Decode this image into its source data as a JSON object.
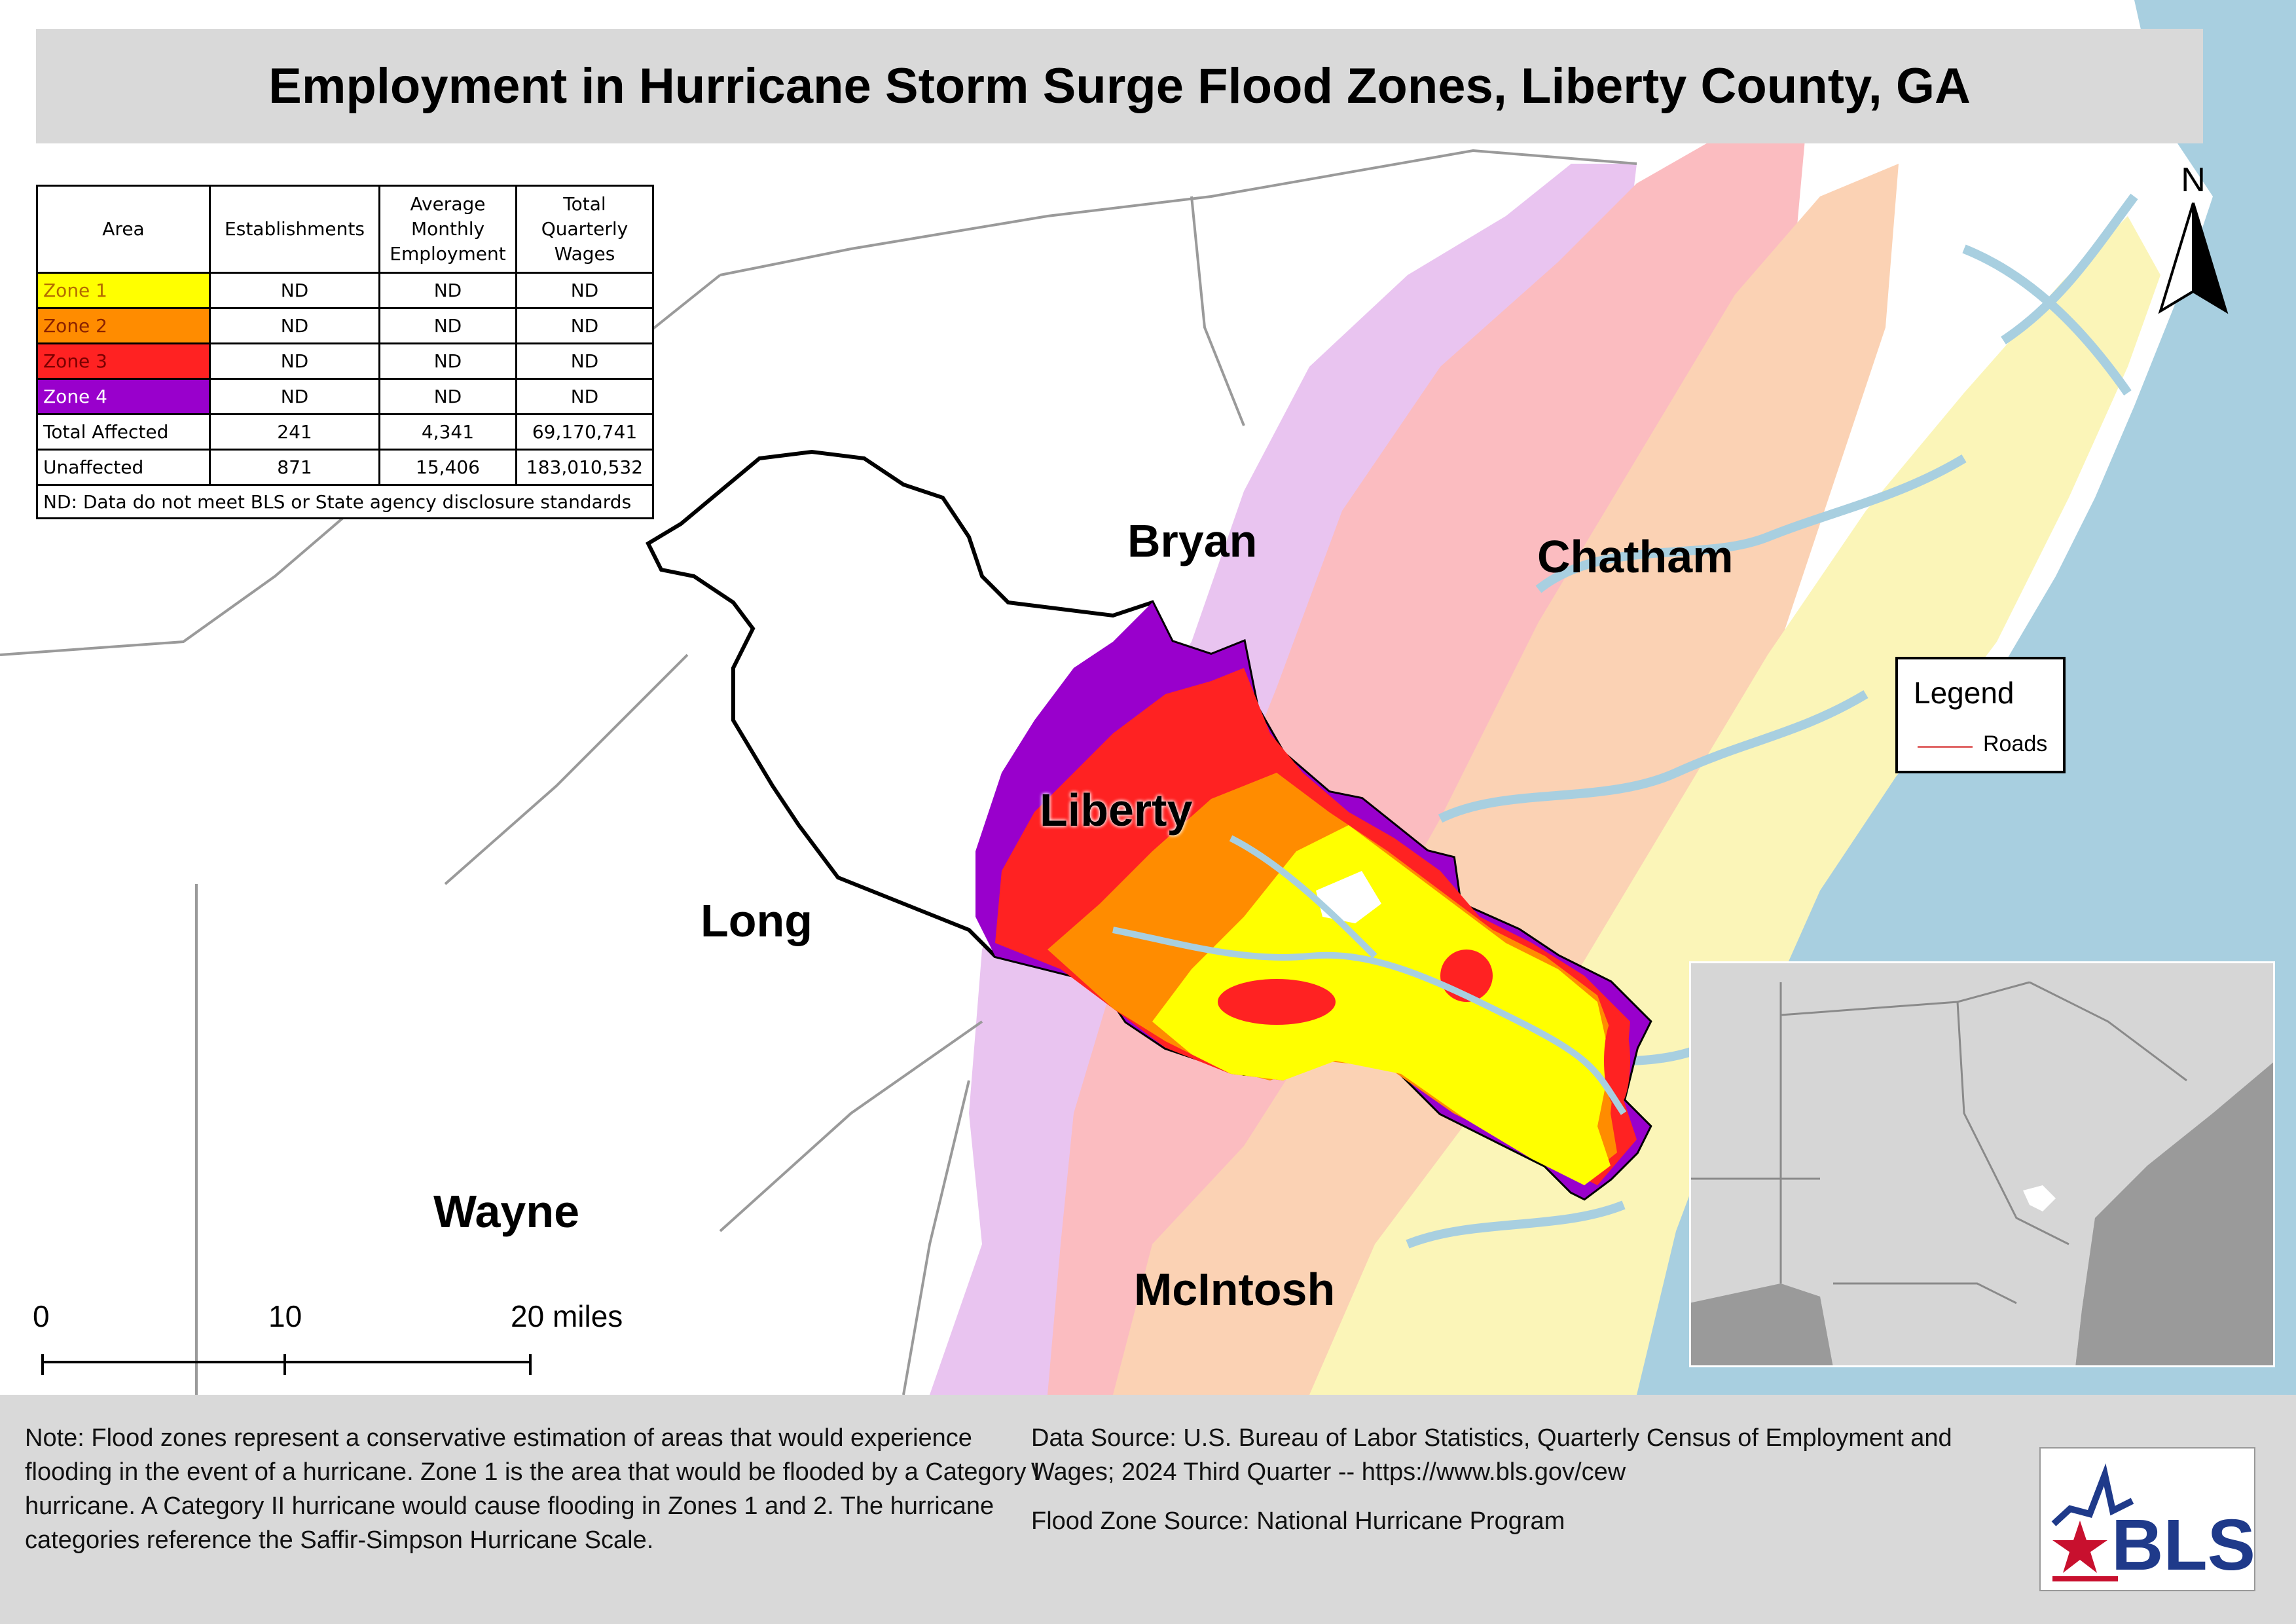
{
  "title": "Employment in Hurricane Storm Surge Flood Zones, Liberty County, GA",
  "table": {
    "headers": [
      "Area",
      "Establishments",
      "Average Monthly Employment",
      "Total Quarterly Wages"
    ],
    "rows": [
      {
        "area": "Zone 1",
        "color": "#ffff00",
        "text_color": "#b36b00",
        "establishments": "ND",
        "employment": "ND",
        "wages": "ND"
      },
      {
        "area": "Zone 2",
        "color": "#ff8c00",
        "text_color": "#8a2200",
        "establishments": "ND",
        "employment": "ND",
        "wages": "ND"
      },
      {
        "area": "Zone 3",
        "color": "#ff2222",
        "text_color": "#7a0000",
        "establishments": "ND",
        "employment": "ND",
        "wages": "ND"
      },
      {
        "area": "Zone 4",
        "color": "#9900cc",
        "text_color": "#ffffff",
        "establishments": "ND",
        "employment": "ND",
        "wages": "ND"
      },
      {
        "area": "Total Affected",
        "color": "#ffffff",
        "text_color": "#000000",
        "establishments": "241",
        "employment": "4,341",
        "wages": "69,170,741"
      },
      {
        "area": "Unaffected",
        "color": "#ffffff",
        "text_color": "#000000",
        "establishments": "871",
        "employment": "15,406",
        "wages": "183,010,532"
      }
    ],
    "note": "ND: Data do not meet BLS or State agency disclosure standards"
  },
  "counties": {
    "bryan": "Bryan",
    "chatham": "Chatham",
    "liberty": "Liberty",
    "long": "Long",
    "wayne": "Wayne",
    "mcintosh": "McIntosh"
  },
  "legend": {
    "title": "Legend",
    "roads_label": "Roads",
    "roads_color": "#e06666"
  },
  "north_label": "N",
  "scale": {
    "labels": [
      "0",
      "10",
      "20 miles"
    ]
  },
  "footer": {
    "note": "Note: Flood zones represent a conservative estimation of areas that would experience flooding in the event of a hurricane. Zone 1 is the area that would be flooded by a Category I hurricane. A Category II hurricane would cause flooding in Zones 1 and 2. The hurricane categories reference the Saffir-Simpson Hurricane Scale.",
    "data_source": "Data Source: U.S. Bureau of Labor Statistics, Quarterly Census of Employment and Wages; 2024 Third Quarter -- https://www.bls.gov/cew",
    "flood_source": "Flood Zone Source: National Hurricane Program"
  },
  "logo": {
    "text": "BLS"
  },
  "colors": {
    "ocean": "#a8cfe0",
    "zone1": "#ffff00",
    "zone2": "#ff8c00",
    "zone3": "#ff2222",
    "zone4": "#9900cc",
    "faded_zone1": "#fbf5b8",
    "faded_zone2": "#fbd2b4",
    "faded_zone3": "#fbbcc0",
    "faded_zone4": "#e9c4f0"
  }
}
